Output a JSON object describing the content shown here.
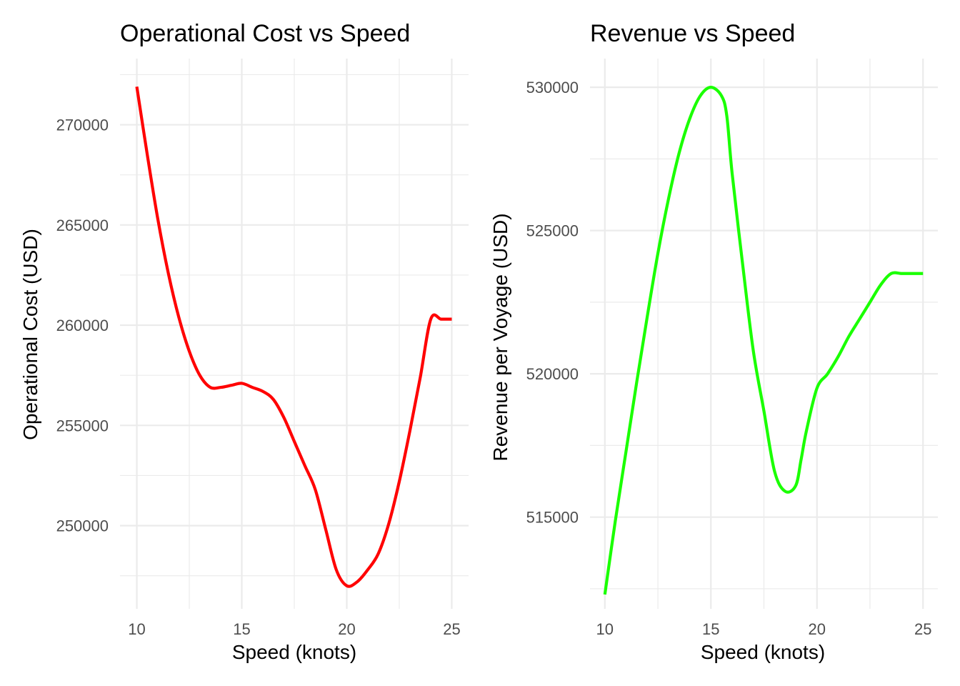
{
  "chart_data": [
    {
      "type": "line",
      "title": "Operational Cost vs Speed",
      "xlabel": "Speed (knots)",
      "ylabel": "Operational Cost (USD)",
      "xlim": [
        9.2,
        25.8
      ],
      "ylim": [
        245850,
        273300
      ],
      "x_ticks": [
        10,
        15,
        20,
        25
      ],
      "y_ticks": [
        250000,
        255000,
        260000,
        265000,
        270000
      ],
      "x_tick_labels": [
        "10",
        "15",
        "20",
        "25"
      ],
      "y_tick_labels": [
        "250000",
        "255000",
        "260000",
        "265000",
        "270000"
      ],
      "grid": true,
      "color": "#ff0000",
      "series": [
        {
          "x": [
            10,
            10.5,
            11,
            11.5,
            12,
            12.5,
            13,
            13.5,
            14,
            14.5,
            15,
            15.5,
            16,
            16.5,
            17,
            17.5,
            18,
            18.5,
            19,
            19.5,
            20,
            20.5,
            21,
            21.5,
            22,
            22.5,
            23,
            23.5,
            24,
            24.5,
            25
          ],
          "y": [
            271900,
            268500,
            265300,
            262600,
            260400,
            258700,
            257500,
            256900,
            256900,
            257000,
            257100,
            256900,
            256700,
            256300,
            255400,
            254200,
            253000,
            251800,
            249800,
            247800,
            247000,
            247200,
            247800,
            248600,
            250100,
            252200,
            254700,
            257400,
            260300,
            260300,
            260300
          ]
        }
      ]
    },
    {
      "type": "line",
      "title": "Revenue vs Speed",
      "xlabel": "Speed (knots)",
      "ylabel": "Revenue per Voyage (USD)",
      "xlim": [
        9.3,
        25.7
      ],
      "ylim": [
        511800,
        531000
      ],
      "x_ticks": [
        10,
        15,
        20,
        25
      ],
      "y_ticks": [
        515000,
        520000,
        525000,
        530000
      ],
      "x_tick_labels": [
        "10",
        "15",
        "20",
        "25"
      ],
      "y_tick_labels": [
        "515000",
        "520000",
        "525000",
        "530000"
      ],
      "grid": true,
      "color": "#1aff00",
      "series": [
        {
          "x": [
            10,
            10.5,
            11,
            11.5,
            12,
            12.5,
            13,
            13.5,
            14,
            14.5,
            15,
            15.5,
            15.75,
            16,
            16.5,
            17,
            17.5,
            18,
            18.5,
            19,
            19.25,
            19.5,
            20,
            20.5,
            21,
            21.5,
            22,
            22.5,
            23,
            23.5,
            24,
            24.5,
            25
          ],
          "y": [
            512300,
            514900,
            517300,
            519700,
            522000,
            524200,
            526100,
            527700,
            528900,
            529700,
            530000,
            529700,
            529000,
            527000,
            523800,
            520800,
            518700,
            516600,
            515900,
            516100,
            517000,
            518000,
            519500,
            520000,
            520600,
            521300,
            521900,
            522500,
            523100,
            523500,
            523500,
            523500,
            523500
          ]
        }
      ]
    }
  ]
}
